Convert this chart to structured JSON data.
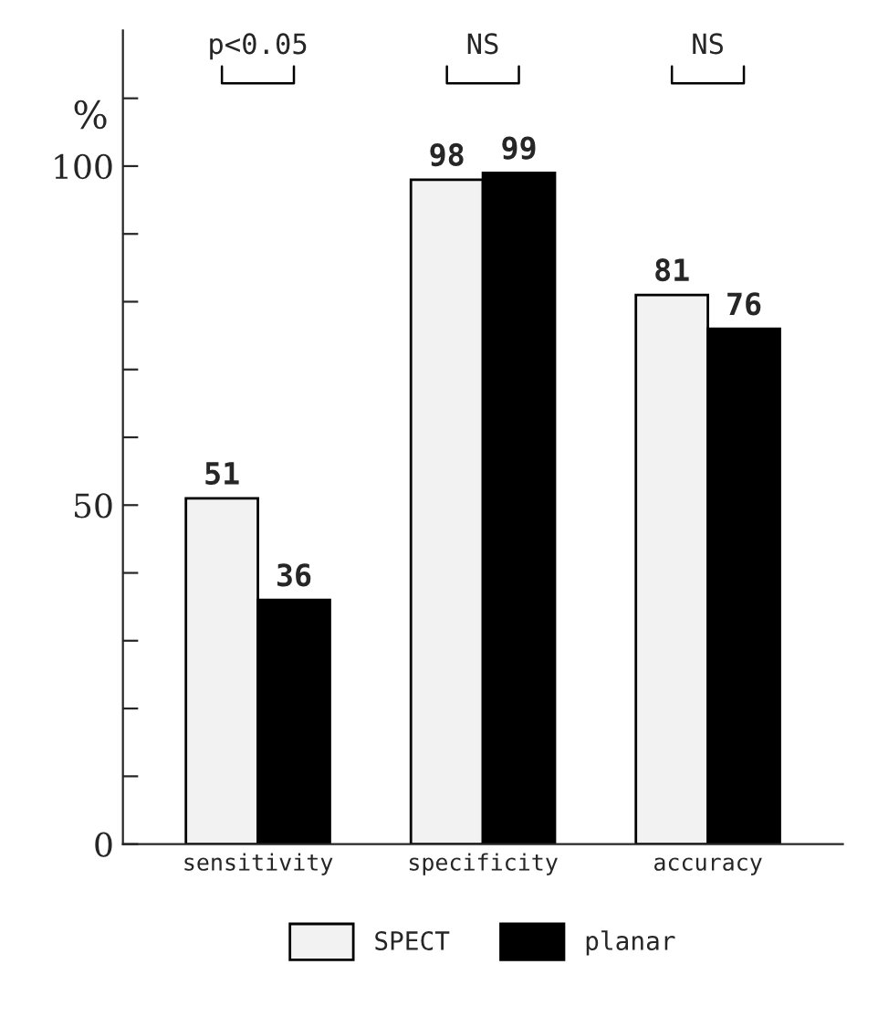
{
  "chart_data": {
    "type": "bar",
    "categories": [
      "sensitivity",
      "specificity",
      "accuracy"
    ],
    "series": [
      {
        "name": "SPECT",
        "color": "#f2f2f2",
        "values": [
          51,
          98,
          81
        ]
      },
      {
        "name": "planar",
        "color": "#000000",
        "values": [
          36,
          99,
          76
        ]
      }
    ],
    "ylabel": "%",
    "ylim": [
      0,
      120
    ],
    "yticks": [
      0,
      {
        "value": 10,
        "label": null
      },
      {
        "value": 20,
        "label": null
      },
      {
        "value": 30,
        "label": null
      },
      {
        "value": 40,
        "label": null
      },
      50,
      {
        "value": 60,
        "label": null
      },
      {
        "value": 70,
        "label": null
      },
      {
        "value": 80,
        "label": null
      },
      {
        "value": 90,
        "label": null
      },
      100,
      {
        "value": 110,
        "label": null
      }
    ],
    "data_labels": true,
    "annotations": [
      "p<0.05",
      "NS",
      "NS"
    ],
    "legend": "bottom",
    "grid": false
  }
}
